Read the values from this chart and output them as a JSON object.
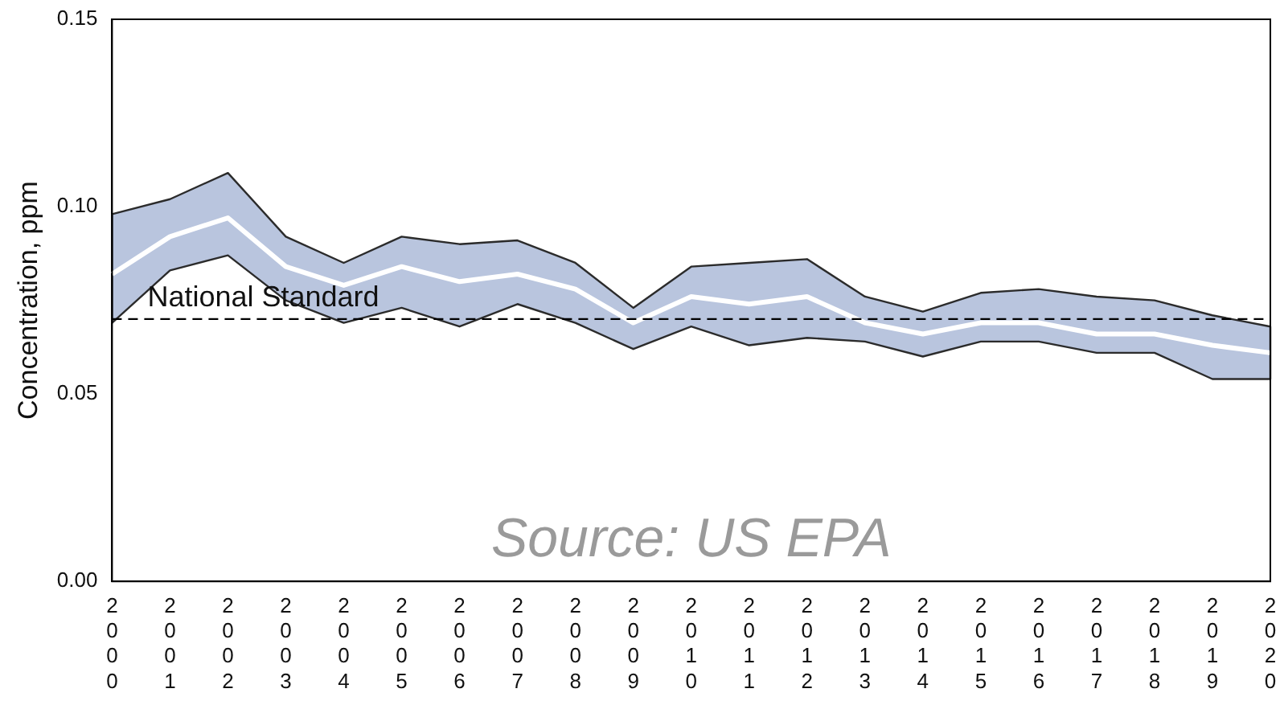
{
  "chart_data": {
    "type": "line",
    "ylabel": "Concentration, ppm",
    "categories": [
      "2000",
      "2001",
      "2002",
      "2003",
      "2004",
      "2005",
      "2006",
      "2007",
      "2008",
      "2009",
      "2010",
      "2011",
      "2012",
      "2013",
      "2014",
      "2015",
      "2016",
      "2017",
      "2018",
      "2019",
      "2020"
    ],
    "series": [
      {
        "color": "#ffffff",
        "values": [
          0.082,
          0.092,
          0.097,
          0.084,
          0.079,
          0.084,
          0.08,
          0.082,
          0.078,
          0.069,
          0.076,
          0.074,
          0.076,
          0.069,
          0.066,
          0.069,
          0.069,
          0.066,
          0.066,
          0.063,
          0.061
        ],
        "lower": [
          0.069,
          0.083,
          0.087,
          0.075,
          0.069,
          0.073,
          0.068,
          0.074,
          0.069,
          0.062,
          0.068,
          0.063,
          0.065,
          0.064,
          0.06,
          0.064,
          0.064,
          0.061,
          0.061,
          0.054,
          0.054
        ],
        "upper": [
          0.098,
          0.102,
          0.109,
          0.092,
          0.085,
          0.092,
          0.09,
          0.091,
          0.085,
          0.073,
          0.084,
          0.085,
          0.086,
          0.076,
          0.072,
          0.077,
          0.078,
          0.076,
          0.075,
          0.071,
          0.068
        ]
      }
    ],
    "ylim": [
      0,
      0.15
    ],
    "yticks": [
      {
        "value": 0,
        "label": "0.00"
      },
      {
        "value": 0.05,
        "label": "0.05"
      },
      {
        "value": 0.1,
        "label": "0.10"
      },
      {
        "value": 0.15,
        "label": "0.15"
      }
    ],
    "ref_lines": [
      {
        "axis": "y",
        "value": 0.07,
        "label": "National Standard",
        "line_style": "dashed",
        "color": "#000000"
      }
    ],
    "annotations": [
      "Source: US EPA"
    ],
    "grid": false,
    "legend": false,
    "marker": "none",
    "line_style": "solid"
  }
}
